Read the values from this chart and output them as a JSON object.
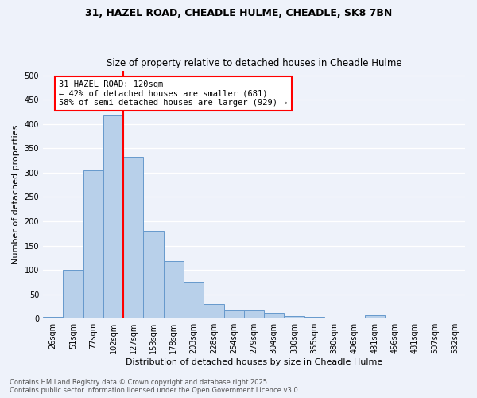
{
  "title": "31, HAZEL ROAD, CHEADLE HULME, CHEADLE, SK8 7BN",
  "subtitle": "Size of property relative to detached houses in Cheadle Hulme",
  "xlabel": "Distribution of detached houses by size in Cheadle Hulme",
  "ylabel": "Number of detached properties",
  "bar_labels": [
    "26sqm",
    "51sqm",
    "77sqm",
    "102sqm",
    "127sqm",
    "153sqm",
    "178sqm",
    "203sqm",
    "228sqm",
    "254sqm",
    "279sqm",
    "304sqm",
    "330sqm",
    "355sqm",
    "380sqm",
    "406sqm",
    "431sqm",
    "456sqm",
    "481sqm",
    "507sqm",
    "532sqm"
  ],
  "bar_values": [
    4,
    100,
    305,
    418,
    332,
    181,
    118,
    76,
    30,
    16,
    16,
    11,
    6,
    4,
    1,
    1,
    7,
    1,
    1,
    2,
    2
  ],
  "bar_color": "#b8d0ea",
  "bar_edge_color": "#6699cc",
  "vline_color": "red",
  "vline_x_idx": 3.5,
  "annotation_text": "31 HAZEL ROAD: 120sqm\n← 42% of detached houses are smaller (681)\n58% of semi-detached houses are larger (929) →",
  "footer_text": "Contains HM Land Registry data © Crown copyright and database right 2025.\nContains public sector information licensed under the Open Government Licence v3.0.",
  "bg_color": "#eef2fa",
  "grid_color": "#ffffff",
  "ylim": [
    0,
    510
  ],
  "yticks": [
    0,
    50,
    100,
    150,
    200,
    250,
    300,
    350,
    400,
    450,
    500
  ]
}
